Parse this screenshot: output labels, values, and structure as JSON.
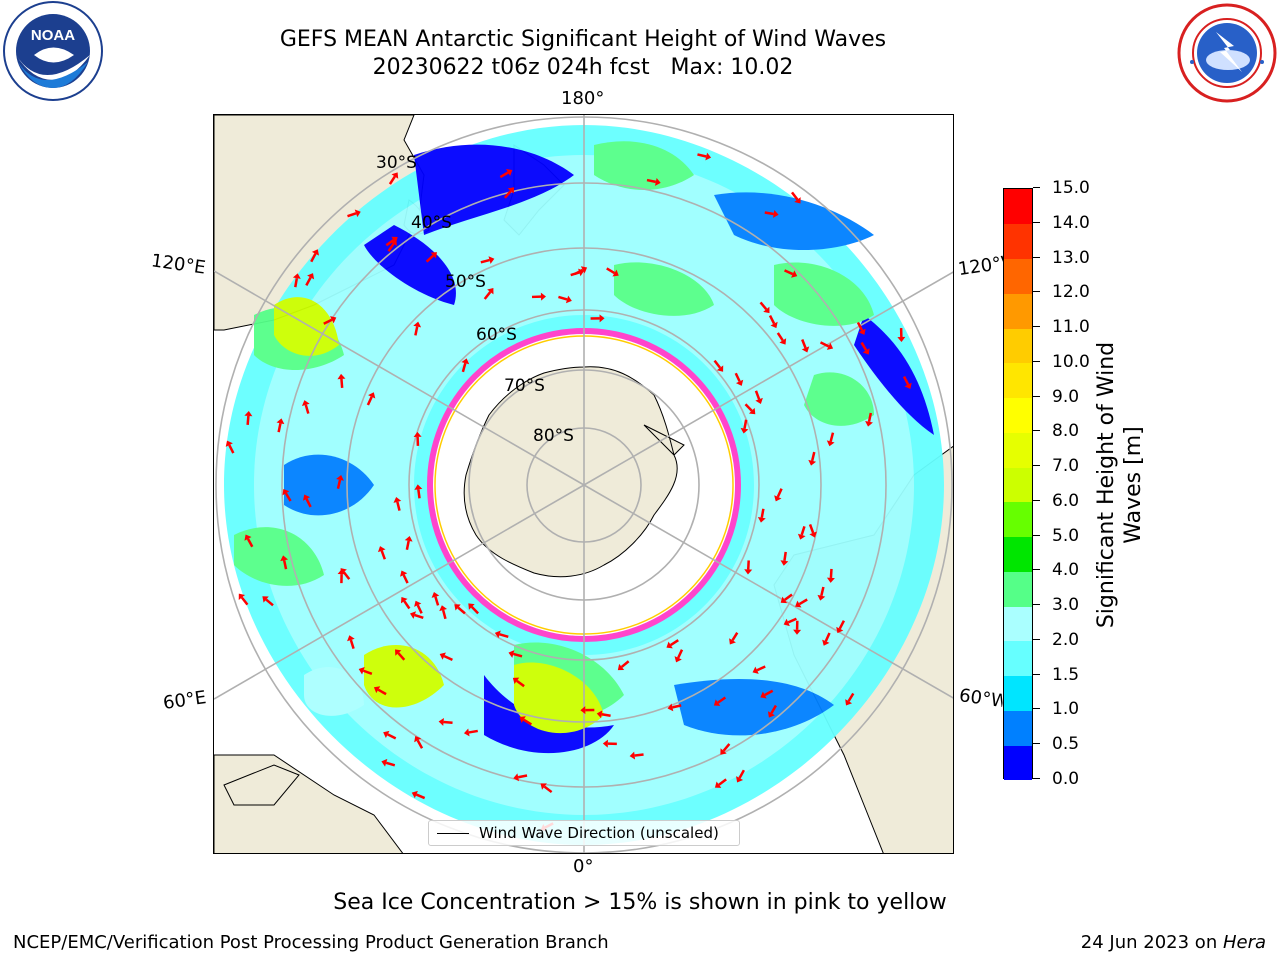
{
  "header": {
    "title_line1": "GEFS MEAN Antarctic Significant Height of Wind Waves",
    "title_line2": "20230622 t06z 024h fcst   Max: 10.02"
  },
  "logos": {
    "noaa": {
      "name": "noaa-logo",
      "text": "NOAA",
      "ring_text": "NATIONAL OCEANIC AND ATMOSPHERIC ADMINISTRATION · U.S. DEPARTMENT OF COMMERCE"
    },
    "nws": {
      "name": "nws-logo",
      "ring_text": "NATIONAL WEATHER SERVICE"
    }
  },
  "map": {
    "longitude_labels": {
      "top": "180°",
      "bottom": "0°",
      "upper_left": "120°E",
      "upper_right": "120°W",
      "lower_left": "60°E",
      "lower_right": "60°W"
    },
    "latitude_labels": [
      "30°S",
      "40°S",
      "50°S",
      "60°S",
      "70°S",
      "80°S"
    ],
    "legend": {
      "label": "Wind Wave Direction (unscaled)"
    },
    "colors": {
      "land": "#efebd9",
      "ice_edge": "#ff44cc",
      "arrow": "#ff0000",
      "grid": "#b0b0b0"
    }
  },
  "colorbar": {
    "label": "Significant Height of Wind Waves [m]",
    "levels": [
      0.0,
      0.5,
      1.0,
      1.5,
      2.0,
      3.0,
      4.0,
      5.0,
      6.0,
      7.0,
      8.0,
      9.0,
      10.0,
      11.0,
      12.0,
      13.0,
      14.0,
      15.0
    ],
    "tick_labels": [
      "0.0",
      "0.5",
      "1.0",
      "1.5",
      "2.0",
      "3.0",
      "4.0",
      "5.0",
      "6.0",
      "7.0",
      "8.0",
      "9.0",
      "10.0",
      "11.0",
      "12.0",
      "13.0",
      "14.0",
      "15.0"
    ],
    "colors": [
      "#0000ff",
      "#0080ff",
      "#00e5ff",
      "#66ffff",
      "#aaffff",
      "#55ff88",
      "#00e600",
      "#66ff00",
      "#ccff00",
      "#e6ff00",
      "#ffff00",
      "#ffe600",
      "#ffcc00",
      "#ff9900",
      "#ff6600",
      "#ff3300",
      "#ff0000"
    ]
  },
  "footer": {
    "note": "Sea Ice Concentration > 15% is shown in pink to yellow",
    "left": "NCEP/EMC/Verification Post Processing Product Generation Branch",
    "right_date": "24 Jun 2023 on ",
    "right_host": "Hera"
  }
}
